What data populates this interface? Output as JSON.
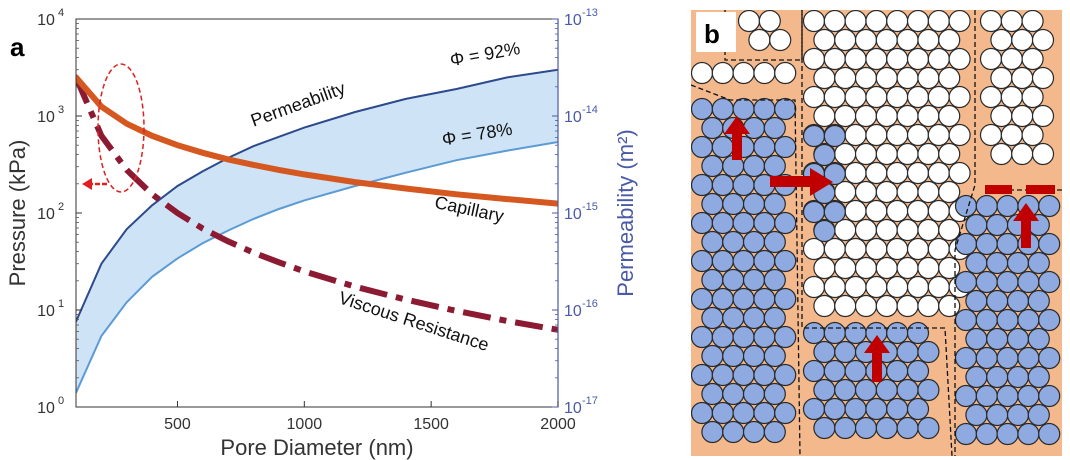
{
  "panel_a": {
    "label": "a",
    "xlabel": "Pore Diameter (nm)",
    "ylabel_left": "Pressure (kPa)",
    "ylabel_right": "Permeability (m²)",
    "x_ticks": [
      "500",
      "1000",
      "1500",
      "2000"
    ],
    "left_ticks": [
      {
        "base": "10",
        "exp": "0"
      },
      {
        "base": "10",
        "exp": "1"
      },
      {
        "base": "10",
        "exp": "2"
      },
      {
        "base": "10",
        "exp": "3"
      },
      {
        "base": "10",
        "exp": "4"
      }
    ],
    "right_ticks": [
      {
        "base": "10",
        "exp": "-17"
      },
      {
        "base": "10",
        "exp": "-16"
      },
      {
        "base": "10",
        "exp": "-15"
      },
      {
        "base": "10",
        "exp": "-14"
      },
      {
        "base": "10",
        "exp": "-13"
      }
    ],
    "annotations": {
      "permeability": "Permeability",
      "phi_high": "Φ = 92%",
      "phi_low": "Φ = 78%",
      "capillary": "Capillary",
      "viscous": "Viscous Resistance"
    },
    "colors": {
      "capillary": "#d4581f",
      "viscous": "#8b1a32",
      "perm_high": "#2c4a8c",
      "perm_low": "#5b9bd5",
      "band_fill": "#cfe3f6",
      "right_axis": "#4a5aa8",
      "annotation_red": "#e02020"
    }
  },
  "chart_data": {
    "type": "line",
    "xlim": [
      100,
      2000
    ],
    "ylim_left": [
      1,
      10000
    ],
    "ylim_right": [
      1e-17,
      1e-13
    ],
    "yscale": "log",
    "grid": false,
    "series": [
      {
        "name": "Capillary",
        "axis": "left",
        "x": [
          100,
          200,
          300,
          400,
          500,
          600,
          700,
          800,
          900,
          1000,
          1200,
          1400,
          1600,
          1800,
          2000
        ],
        "y": [
          2500,
          1250,
          833,
          625,
          500,
          417,
          357,
          313,
          278,
          250,
          208,
          179,
          156,
          139,
          125
        ]
      },
      {
        "name": "Viscous Resistance",
        "axis": "left",
        "x": [
          100,
          200,
          300,
          400,
          500,
          600,
          700,
          800,
          900,
          1000,
          1200,
          1400,
          1600,
          1800,
          2000
        ],
        "y": [
          2500,
          625,
          278,
          156,
          100,
          69,
          51,
          39,
          31,
          25,
          17.4,
          12.8,
          9.8,
          7.7,
          6.25
        ]
      },
      {
        "name": "Permeability Φ = 92%",
        "axis": "right",
        "x": [
          100,
          200,
          300,
          400,
          500,
          600,
          700,
          800,
          900,
          1000,
          1200,
          1400,
          1600,
          1800,
          2000
        ],
        "y": [
          7.6e-17,
          3e-16,
          6.8e-16,
          1.2e-15,
          1.9e-15,
          2.7e-15,
          3.7e-15,
          4.9e-15,
          6.1e-15,
          7.6e-15,
          1.1e-14,
          1.5e-14,
          1.9e-14,
          2.5e-14,
          3e-14
        ]
      },
      {
        "name": "Permeability Φ = 78%",
        "axis": "right",
        "x": [
          100,
          200,
          300,
          400,
          500,
          600,
          700,
          800,
          900,
          1000,
          1200,
          1400,
          1600,
          1800,
          2000
        ],
        "y": [
          1.4e-17,
          5.4e-17,
          1.2e-16,
          2.2e-16,
          3.4e-16,
          4.9e-16,
          6.6e-16,
          8.7e-16,
          1.1e-15,
          1.35e-15,
          1.9e-15,
          2.6e-15,
          3.5e-15,
          4.4e-15,
          5.4e-15
        ]
      }
    ]
  },
  "panel_b": {
    "label": "b",
    "colors": {
      "fluid": "#f3b88c",
      "wetted_particle": "#8eaae0",
      "dry_particle": "#ffffff",
      "particle_edge": "#2a2a2a",
      "arrow": "#c00000"
    }
  }
}
